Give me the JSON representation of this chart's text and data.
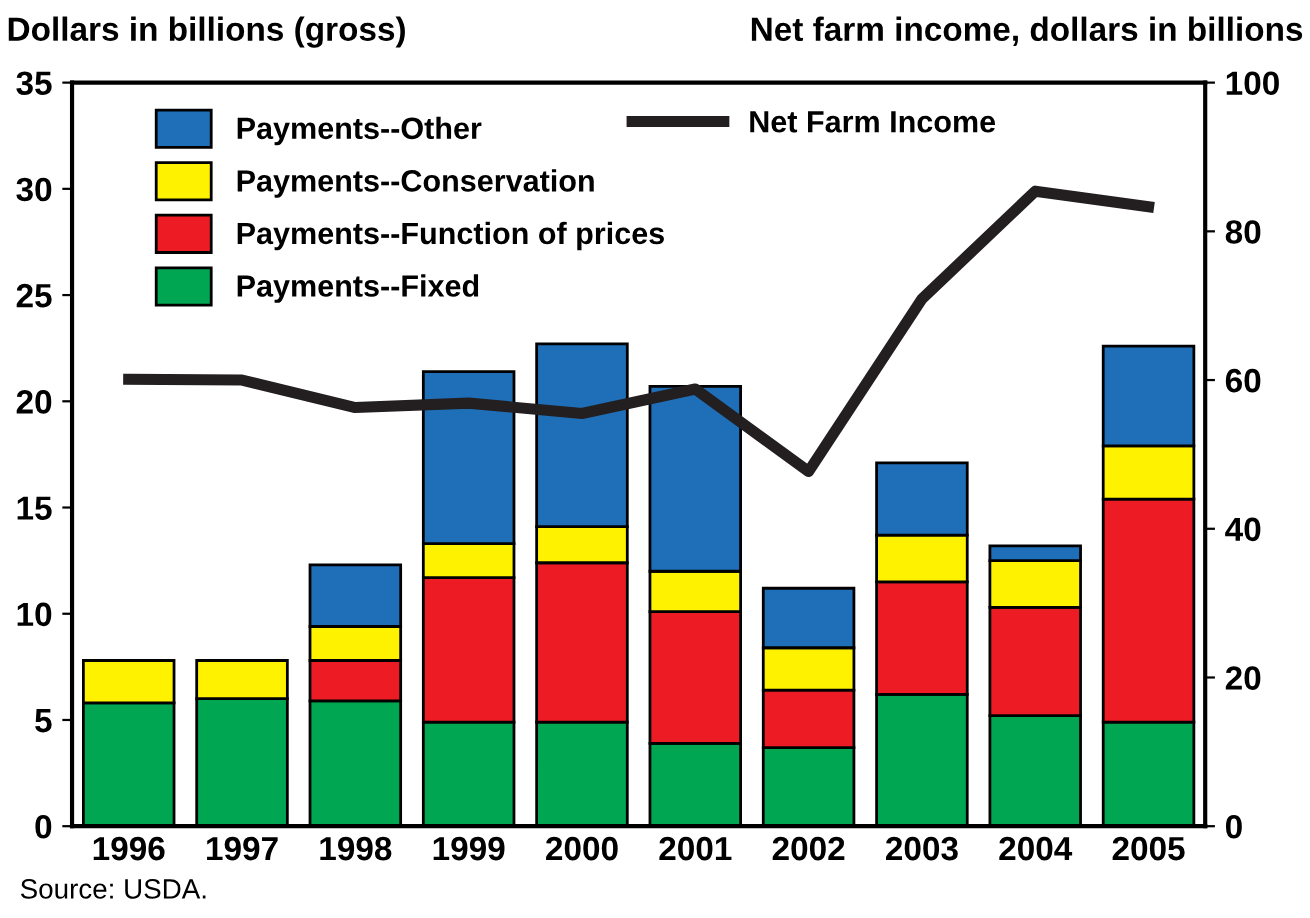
{
  "chart_data": {
    "type": "bar",
    "stacked": true,
    "ylabel": "Dollars in billions (gross)",
    "y2label": "Net farm income, dollars in billions",
    "categories": [
      "1996",
      "1997",
      "1998",
      "1999",
      "2000",
      "2001",
      "2002",
      "2003",
      "2004",
      "2005"
    ],
    "series": [
      {
        "name": "Payments--Fixed",
        "color": "#00a651",
        "values": [
          5.8,
          6.0,
          5.9,
          4.9,
          4.9,
          3.9,
          3.7,
          6.2,
          5.2,
          4.9
        ]
      },
      {
        "name": "Payments--Function of prices",
        "color": "#ed1c24",
        "values": [
          null,
          null,
          1.9,
          6.8,
          7.5,
          6.2,
          2.7,
          5.3,
          5.1,
          10.5
        ]
      },
      {
        "name": "Payments--Conservation",
        "color": "#fff200",
        "values": [
          2.0,
          1.8,
          1.6,
          1.6,
          1.7,
          1.9,
          2.0,
          2.2,
          2.2,
          2.5
        ]
      },
      {
        "name": "Payments--Other",
        "color": "#1f6fb8",
        "values": [
          null,
          null,
          2.9,
          8.1,
          8.6,
          8.7,
          2.8,
          3.4,
          0.7,
          4.7
        ]
      },
      {
        "name": "Net Farm Income",
        "type": "line",
        "axis": "y2",
        "color": "#231f20",
        "values": [
          60.1,
          60.0,
          56.3,
          56.9,
          55.5,
          58.8,
          47.7,
          70.9,
          85.4,
          83.3
        ]
      }
    ],
    "ylim": [
      0,
      35
    ],
    "yticks": [
      0,
      5,
      10,
      15,
      20,
      25,
      30,
      35
    ],
    "y2lim": [
      0,
      100
    ],
    "y2ticks": [
      0,
      20,
      40,
      60,
      80,
      100
    ],
    "legend": "top",
    "marker": "none",
    "line_style": "solid",
    "grid": false,
    "annotations": [
      "Source: USDA."
    ]
  }
}
